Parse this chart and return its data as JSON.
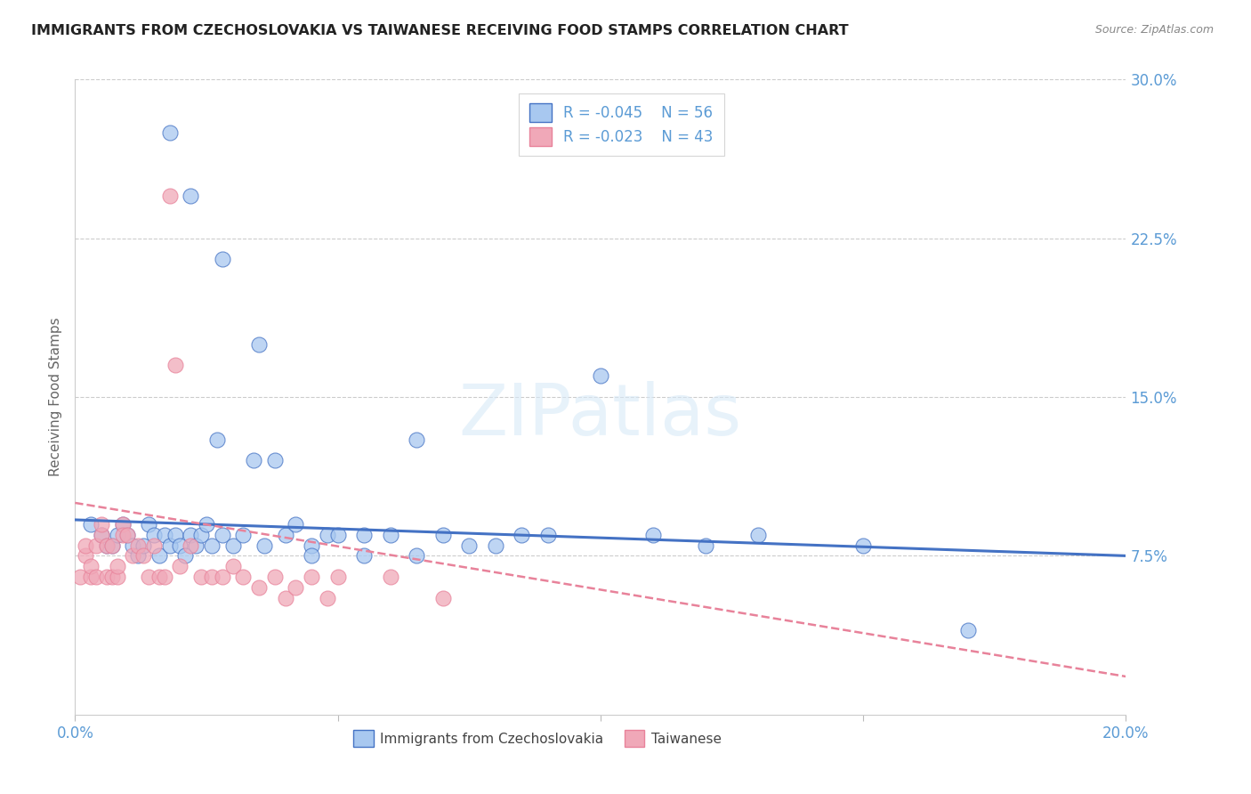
{
  "title": "IMMIGRANTS FROM CZECHOSLOVAKIA VS TAIWANESE RECEIVING FOOD STAMPS CORRELATION CHART",
  "source": "Source: ZipAtlas.com",
  "ylabel": "Receiving Food Stamps",
  "xlim": [
    0.0,
    0.2
  ],
  "ylim": [
    0.0,
    0.3
  ],
  "yticks": [
    0.075,
    0.15,
    0.225,
    0.3
  ],
  "ytick_labels": [
    "7.5%",
    "15.0%",
    "22.5%",
    "30.0%"
  ],
  "xticks": [
    0.0,
    0.05,
    0.1,
    0.15,
    0.2
  ],
  "xtick_labels": [
    "0.0%",
    "",
    "",
    "",
    "20.0%"
  ],
  "grid_color": "#cccccc",
  "background_color": "#ffffff",
  "axis_color": "#5b9bd5",
  "watermark": "ZIPatlas",
  "scatter1_color": "#a8c8f0",
  "scatter2_color": "#f0a8b8",
  "line1_color": "#4472c4",
  "line2_color": "#e8829a",
  "scatter1_x": [
    0.003,
    0.005,
    0.006,
    0.007,
    0.008,
    0.009,
    0.01,
    0.011,
    0.012,
    0.013,
    0.014,
    0.015,
    0.016,
    0.017,
    0.018,
    0.019,
    0.02,
    0.021,
    0.022,
    0.023,
    0.024,
    0.025,
    0.026,
    0.027,
    0.028,
    0.03,
    0.032,
    0.034,
    0.036,
    0.038,
    0.04,
    0.042,
    0.045,
    0.048,
    0.05,
    0.055,
    0.06,
    0.065,
    0.07,
    0.075,
    0.08,
    0.085,
    0.09,
    0.1,
    0.11,
    0.12,
    0.13,
    0.15,
    0.17,
    0.018,
    0.022,
    0.028,
    0.035,
    0.045,
    0.055,
    0.065
  ],
  "scatter1_y": [
    0.09,
    0.085,
    0.08,
    0.08,
    0.085,
    0.09,
    0.085,
    0.08,
    0.075,
    0.08,
    0.09,
    0.085,
    0.075,
    0.085,
    0.08,
    0.085,
    0.08,
    0.075,
    0.085,
    0.08,
    0.085,
    0.09,
    0.08,
    0.13,
    0.085,
    0.08,
    0.085,
    0.12,
    0.08,
    0.12,
    0.085,
    0.09,
    0.08,
    0.085,
    0.085,
    0.085,
    0.085,
    0.13,
    0.085,
    0.08,
    0.08,
    0.085,
    0.085,
    0.16,
    0.085,
    0.08,
    0.085,
    0.08,
    0.04,
    0.275,
    0.245,
    0.215,
    0.175,
    0.075,
    0.075,
    0.075
  ],
  "scatter2_x": [
    0.001,
    0.002,
    0.002,
    0.003,
    0.003,
    0.004,
    0.004,
    0.005,
    0.005,
    0.006,
    0.006,
    0.007,
    0.007,
    0.008,
    0.008,
    0.009,
    0.009,
    0.01,
    0.011,
    0.012,
    0.013,
    0.014,
    0.015,
    0.016,
    0.017,
    0.018,
    0.019,
    0.02,
    0.022,
    0.024,
    0.026,
    0.028,
    0.03,
    0.032,
    0.035,
    0.038,
    0.04,
    0.042,
    0.045,
    0.048,
    0.05,
    0.06,
    0.07
  ],
  "scatter2_y": [
    0.065,
    0.075,
    0.08,
    0.065,
    0.07,
    0.065,
    0.08,
    0.085,
    0.09,
    0.065,
    0.08,
    0.065,
    0.08,
    0.065,
    0.07,
    0.09,
    0.085,
    0.085,
    0.075,
    0.08,
    0.075,
    0.065,
    0.08,
    0.065,
    0.065,
    0.245,
    0.165,
    0.07,
    0.08,
    0.065,
    0.065,
    0.065,
    0.07,
    0.065,
    0.06,
    0.065,
    0.055,
    0.06,
    0.065,
    0.055,
    0.065,
    0.065,
    0.055
  ],
  "line1_start_x": 0.0,
  "line1_start_y": 0.092,
  "line1_end_x": 0.2,
  "line1_end_y": 0.075,
  "line2_start_x": 0.0,
  "line2_start_y": 0.1,
  "line2_end_x": 0.2,
  "line2_end_y": 0.018
}
